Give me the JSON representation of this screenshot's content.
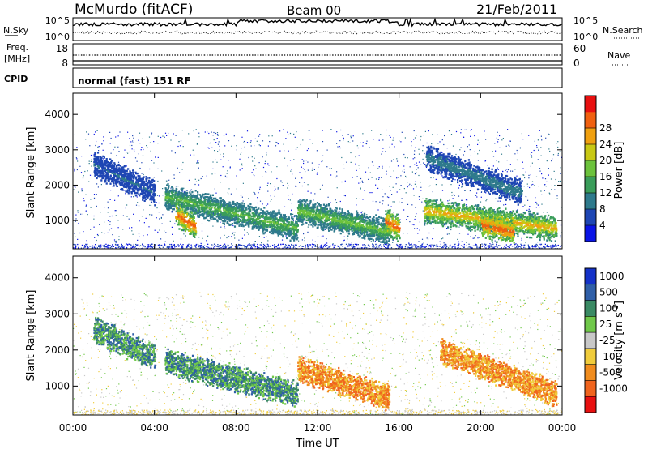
{
  "header": {
    "station": "McMurdo (fitACF)",
    "beam": "Beam 00",
    "date": "21/Feb/2011"
  },
  "top_panels": {
    "noise": {
      "left_label": "N.Sky",
      "right_label": "N.Search",
      "ticks_left": [
        "10^5",
        "10^0"
      ],
      "ticks_right": [
        "10^5",
        "10^0"
      ]
    },
    "freq": {
      "left_label_1": "Freq.",
      "left_label_2": "[MHz]",
      "right_label": "Nave",
      "ticks_left": [
        "18",
        "8"
      ],
      "ticks_right": [
        "60",
        "0"
      ]
    },
    "cpid": {
      "label": "CPID",
      "text": "normal (fast) 151 RF"
    }
  },
  "chart_data": [
    {
      "type": "heatmap",
      "title": "",
      "ylabel": "Slant Range [km]",
      "xlabel": "",
      "ylim": [
        200,
        4600
      ],
      "yticks": [
        "1000",
        "2000",
        "3000",
        "4000"
      ],
      "colorbar": {
        "label": "Power [dB]",
        "ticks": [
          "4",
          "8",
          "12",
          "16",
          "20",
          "24",
          "28"
        ],
        "colors": [
          "#0a14e6",
          "#1e46b4",
          "#2e7a8c",
          "#3a9d5a",
          "#6cc23c",
          "#c8c814",
          "#f0a010",
          "#f06010",
          "#e81010"
        ]
      },
      "features": [
        {
          "t_start": 1.0,
          "t_end": 4.0,
          "range_start": 2600,
          "range_end": 1800,
          "power": 6
        },
        {
          "t_start": 4.5,
          "t_end": 11.0,
          "range_start": 1700,
          "range_end": 800,
          "power": 14
        },
        {
          "t_start": 5.0,
          "t_end": 6.0,
          "range_start": 1200,
          "range_end": 850,
          "power": 27
        },
        {
          "t_start": 11.0,
          "t_end": 15.5,
          "range_start": 1300,
          "range_end": 700,
          "power": 15
        },
        {
          "t_start": 15.3,
          "t_end": 16.0,
          "range_start": 1000,
          "range_end": 800,
          "power": 27
        },
        {
          "t_start": 17.2,
          "t_end": 23.7,
          "range_start": 1300,
          "range_end": 800,
          "power": 22
        },
        {
          "t_start": 20.0,
          "t_end": 21.6,
          "range_start": 900,
          "range_end": 700,
          "power": 28
        },
        {
          "t_start": 17.3,
          "t_end": 22.0,
          "range_start": 2800,
          "range_end": 1800,
          "power": 8
        }
      ]
    },
    {
      "type": "heatmap",
      "title": "",
      "ylabel": "Slant Range [km]",
      "xlabel": "Time UT",
      "ylim": [
        200,
        4600
      ],
      "yticks": [
        "1000",
        "2000",
        "3000",
        "4000"
      ],
      "xticks": [
        "00:00",
        "04:00",
        "08:00",
        "12:00",
        "16:00",
        "20:00",
        "00:00"
      ],
      "colorbar": {
        "label": "Velocity [m s^-1]",
        "ticks": [
          "1000",
          "500",
          "100",
          "25",
          "-25",
          "-100",
          "-500",
          "-1000"
        ],
        "colors": [
          "#1432c8",
          "#2f5fa8",
          "#3a8a64",
          "#70c84a",
          "#c8c8c8",
          "#f0cc3c",
          "#f08c1e",
          "#f0641e",
          "#e81010"
        ]
      },
      "features": [
        {
          "t_start": 1.0,
          "t_end": 4.0,
          "range_start": 2600,
          "range_end": 1800,
          "velocity": 300
        },
        {
          "t_start": 4.5,
          "t_end": 11.0,
          "range_start": 1700,
          "range_end": 800,
          "velocity": 200
        },
        {
          "t_start": 11.0,
          "t_end": 15.5,
          "range_start": 1500,
          "range_end": 700,
          "velocity": -300
        },
        {
          "t_start": 18.0,
          "t_end": 23.7,
          "range_start": 2000,
          "range_end": 800,
          "velocity": -200
        }
      ]
    }
  ]
}
